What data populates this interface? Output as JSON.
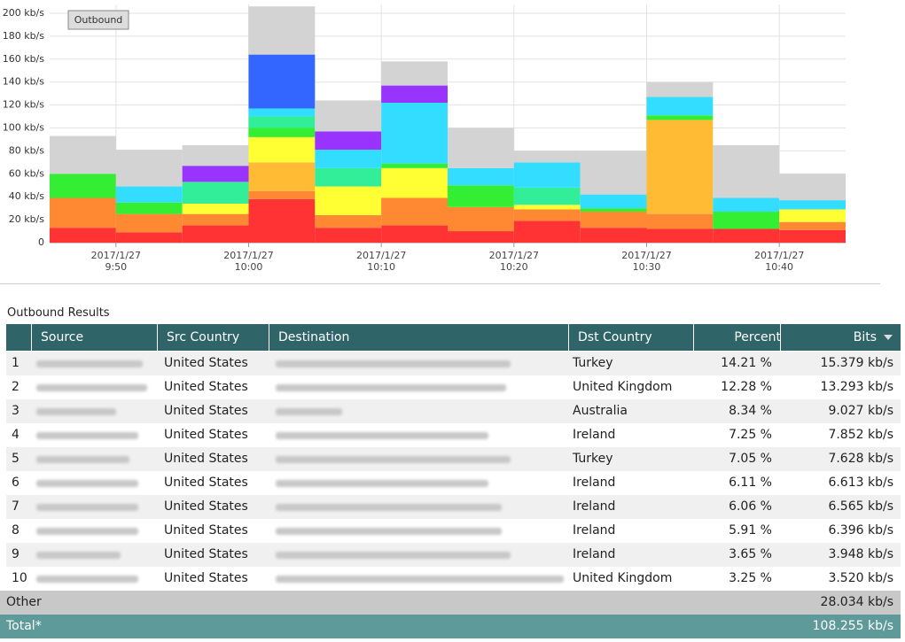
{
  "chart_data": {
    "type": "bar",
    "stacked": true,
    "legend_label": "Outbound",
    "categories": [
      null,
      null,
      null,
      null,
      null,
      null,
      null,
      null,
      null,
      null,
      null,
      null
    ],
    "series": [
      {
        "color": "#ff3333",
        "values": [
          13,
          9,
          15,
          38,
          13,
          15,
          10,
          19,
          13,
          12,
          12,
          11
        ]
      },
      {
        "color": "#ff8833",
        "values": [
          26,
          16,
          10,
          7,
          11,
          24,
          21,
          10,
          14,
          13,
          0,
          7
        ]
      },
      {
        "color": "#ffbb33",
        "values": [
          0,
          0,
          0,
          25,
          0,
          0,
          0,
          0,
          0,
          82,
          0,
          0
        ]
      },
      {
        "color": "#ffff33",
        "values": [
          0,
          0,
          9,
          22,
          25,
          26,
          0,
          4,
          0,
          0,
          0,
          11
        ]
      },
      {
        "color": "#33ee33",
        "values": [
          21,
          10,
          0,
          8,
          0,
          4,
          19,
          0,
          3,
          4,
          15,
          0
        ]
      },
      {
        "color": "#33ee99",
        "values": [
          0,
          0,
          19,
          10,
          16,
          0,
          0,
          15,
          0,
          0,
          0,
          0
        ]
      },
      {
        "color": "#33ddff",
        "values": [
          0,
          14,
          0,
          7,
          16,
          53,
          15,
          22,
          12,
          16,
          12,
          8
        ]
      },
      {
        "color": "#3366ff",
        "values": [
          0,
          0,
          0,
          47,
          0,
          0,
          0,
          0,
          0,
          0,
          0,
          0
        ]
      },
      {
        "color": "#9933ff",
        "values": [
          0,
          0,
          14,
          0,
          16,
          15,
          0,
          0,
          0,
          0,
          0,
          0
        ]
      },
      {
        "color": "#d3d3d3",
        "values": [
          33,
          32,
          18,
          42,
          27,
          21,
          35,
          10,
          38,
          13,
          46,
          23
        ]
      }
    ],
    "ylim": [
      0,
      200
    ],
    "yticks": [
      0,
      {
        "value": 20,
        "label": "20 kb/s"
      },
      {
        "value": 40,
        "label": "40 kb/s"
      },
      {
        "value": 60,
        "label": "60 kb/s"
      },
      {
        "value": 80,
        "label": "80 kb/s"
      },
      {
        "value": 100,
        "label": "100 kb/s"
      },
      {
        "value": 120,
        "label": "120 kb/s"
      },
      {
        "value": 140,
        "label": "140 kb/s"
      },
      {
        "value": 160,
        "label": "160 kb/s"
      },
      {
        "value": 180,
        "label": "180 kb/s"
      },
      {
        "value": 200,
        "label": "200 kb/s"
      }
    ],
    "xlim": [
      0,
      12
    ],
    "xticks": [
      {
        "value": 1,
        "label": "2017/1/27\n9:50"
      },
      {
        "value": 3,
        "label": "2017/1/27\n10:00"
      },
      {
        "value": 5,
        "label": "2017/1/27\n10:10"
      },
      {
        "value": 7,
        "label": "2017/1/27\n10:20"
      },
      {
        "value": 9,
        "label": "2017/1/27\n10:30"
      },
      {
        "value": 11,
        "label": "2017/1/27\n10:40"
      }
    ],
    "grid": true
  },
  "results": {
    "title": "Outbound Results",
    "columns": [
      "Source",
      "Src Country",
      "Destination",
      "Dst Country",
      "Percent",
      "Bits"
    ],
    "rows": [
      [
        "1",
        "United States",
        "Turkey",
        "14.21 %",
        "15.379 kb/s"
      ],
      [
        "2",
        "United States",
        "United Kingdom",
        "12.28 %",
        "13.293 kb/s"
      ],
      [
        "3",
        "United States",
        "Australia",
        "8.34 %",
        "9.027 kb/s"
      ],
      [
        "4",
        "United States",
        "Ireland",
        "7.25 %",
        "7.852 kb/s"
      ],
      [
        "5",
        "United States",
        "Turkey",
        "7.05 %",
        "7.628 kb/s"
      ],
      [
        "6",
        "United States",
        "Ireland",
        "6.11 %",
        "6.613 kb/s"
      ],
      [
        "7",
        "United States",
        "Ireland",
        "6.06 %",
        "6.565 kb/s"
      ],
      [
        "8",
        "United States",
        "Ireland",
        "5.91 %",
        "6.396 kb/s"
      ],
      [
        "9",
        "United States",
        "Ireland",
        "3.65 %",
        "3.948 kb/s"
      ],
      [
        "10",
        "United States",
        "United Kingdom",
        "3.25 %",
        "3.520 kb/s"
      ]
    ],
    "other": [
      "Other",
      "28.034 kb/s"
    ],
    "total": [
      "Total*",
      "108.255 kb/s"
    ]
  }
}
